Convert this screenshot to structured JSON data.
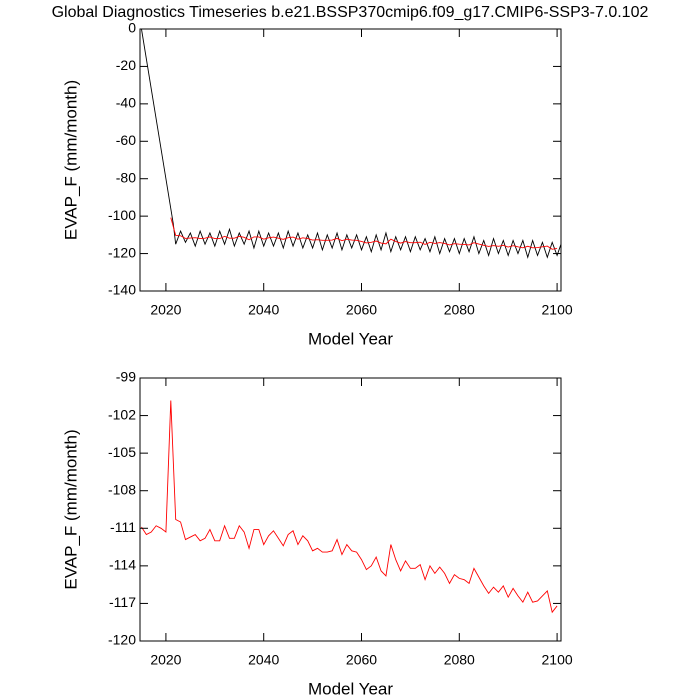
{
  "chart_data": [
    {
      "type": "line",
      "title": "Global Diagnostics Timeseries b.e21.BSSP370cmip6.f09_g17.CMIP6-SSP3-7.0.102",
      "xlabel": "Model Year",
      "ylabel": "EVAP_F (mm/month)",
      "xlim": [
        2014.7,
        2100.8
      ],
      "ylim": [
        -140,
        0
      ],
      "xticks": [
        2020,
        2040,
        2060,
        2080,
        2100
      ],
      "yticks": [
        0,
        -20,
        -40,
        -60,
        -80,
        -100,
        -120,
        -140
      ],
      "series": [
        {
          "color": "#000000",
          "x": [
            2015,
            2021.5,
            2022,
            2023,
            2024,
            2025,
            2026,
            2027,
            2028,
            2029,
            2030,
            2031,
            2032,
            2033,
            2034,
            2035,
            2036,
            2037,
            2038,
            2039,
            2040,
            2041,
            2042,
            2043,
            2044,
            2045,
            2046,
            2047,
            2048,
            2049,
            2050,
            2051,
            2052,
            2053,
            2054,
            2055,
            2056,
            2057,
            2058,
            2059,
            2060,
            2061,
            2062,
            2063,
            2064,
            2065,
            2066,
            2067,
            2068,
            2069,
            2070,
            2071,
            2072,
            2073,
            2074,
            2075,
            2076,
            2077,
            2078,
            2079,
            2080,
            2081,
            2082,
            2083,
            2084,
            2085,
            2086,
            2087,
            2088,
            2089,
            2090,
            2091,
            2092,
            2093,
            2094,
            2095,
            2096,
            2097,
            2098,
            2099,
            2100,
            2100.8
          ],
          "values": [
            0,
            -104,
            -115,
            -108,
            -114,
            -109,
            -116,
            -108,
            -115,
            -109,
            -116,
            -108,
            -115,
            -107,
            -116,
            -109,
            -115,
            -108,
            -117,
            -108,
            -116,
            -109,
            -116,
            -109,
            -117,
            -108,
            -116,
            -109,
            -117,
            -110,
            -117,
            -109,
            -118,
            -110,
            -117,
            -109,
            -118,
            -110,
            -117,
            -110,
            -118,
            -111,
            -119,
            -110,
            -118,
            -109,
            -119,
            -111,
            -118,
            -111,
            -119,
            -111,
            -118,
            -112,
            -119,
            -111,
            -120,
            -112,
            -119,
            -112,
            -120,
            -112,
            -119,
            -111,
            -120,
            -113,
            -121,
            -112,
            -120,
            -113,
            -121,
            -113,
            -120,
            -113,
            -122,
            -113,
            -121,
            -114,
            -122,
            -114,
            -121,
            -115
          ]
        },
        {
          "color": "#ff0000",
          "x": [
            2021,
            2022,
            2023,
            2024,
            2025,
            2026,
            2027,
            2028,
            2029,
            2030,
            2031,
            2032,
            2033,
            2034,
            2035,
            2036,
            2037,
            2038,
            2039,
            2040,
            2041,
            2042,
            2043,
            2044,
            2045,
            2046,
            2047,
            2048,
            2049,
            2050,
            2051,
            2052,
            2053,
            2054,
            2055,
            2056,
            2057,
            2058,
            2059,
            2060,
            2061,
            2062,
            2063,
            2064,
            2065,
            2066,
            2067,
            2068,
            2069,
            2070,
            2071,
            2072,
            2073,
            2074,
            2075,
            2076,
            2077,
            2078,
            2079,
            2080,
            2081,
            2082,
            2083,
            2084,
            2085,
            2086,
            2087,
            2088,
            2089,
            2090,
            2091,
            2092,
            2093,
            2094,
            2095,
            2096,
            2097,
            2098,
            2099,
            2100
          ],
          "values": [
            -100.8,
            -110.3,
            -110.5,
            -111.9,
            -111.7,
            -111.5,
            -112.0,
            -111.8,
            -111.1,
            -112.0,
            -112.0,
            -110.8,
            -111.8,
            -111.8,
            -110.8,
            -111.3,
            -112.6,
            -111.1,
            -111.1,
            -112.3,
            -111.6,
            -111.2,
            -111.8,
            -112.4,
            -111.5,
            -111.2,
            -112.3,
            -111.6,
            -112.0,
            -112.8,
            -112.6,
            -112.9,
            -112.9,
            -112.8,
            -111.9,
            -113.1,
            -112.3,
            -112.8,
            -112.9,
            -113.5,
            -114.3,
            -114.0,
            -113.3,
            -114.4,
            -114.8,
            -112.3,
            -113.5,
            -114.4,
            -113.6,
            -114.2,
            -114.2,
            -113.9,
            -115.1,
            -114.0,
            -114.6,
            -114.1,
            -114.6,
            -115.4,
            -114.7,
            -115.0,
            -115.1,
            -115.4,
            -114.2,
            -114.9,
            -115.6,
            -116.2,
            -115.7,
            -116.1,
            -115.6,
            -116.5,
            -115.8,
            -116.4,
            -116.9,
            -116.1,
            -116.9,
            -116.8,
            -116.4,
            -116.0,
            -117.7,
            -117.2
          ]
        }
      ]
    },
    {
      "type": "line",
      "xlabel": "Model Year",
      "ylabel": "EVAP_F (mm/month)",
      "xlim": [
        2014.7,
        2100.8
      ],
      "ylim": [
        -120,
        -99
      ],
      "xticks": [
        2020,
        2040,
        2060,
        2080,
        2100
      ],
      "yticks": [
        -99,
        -102,
        -105,
        -108,
        -111,
        -114,
        -117,
        -120
      ],
      "series": [
        {
          "color": "#ff0000",
          "x": [
            2015,
            2016,
            2017,
            2018,
            2019,
            2020,
            2021,
            2022,
            2023,
            2024,
            2025,
            2026,
            2027,
            2028,
            2029,
            2030,
            2031,
            2032,
            2033,
            2034,
            2035,
            2036,
            2037,
            2038,
            2039,
            2040,
            2041,
            2042,
            2043,
            2044,
            2045,
            2046,
            2047,
            2048,
            2049,
            2050,
            2051,
            2052,
            2053,
            2054,
            2055,
            2056,
            2057,
            2058,
            2059,
            2060,
            2061,
            2062,
            2063,
            2064,
            2065,
            2066,
            2067,
            2068,
            2069,
            2070,
            2071,
            2072,
            2073,
            2074,
            2075,
            2076,
            2077,
            2078,
            2079,
            2080,
            2081,
            2082,
            2083,
            2084,
            2085,
            2086,
            2087,
            2088,
            2089,
            2090,
            2091,
            2092,
            2093,
            2094,
            2095,
            2096,
            2097,
            2098,
            2099,
            2100
          ],
          "values": [
            -110.9,
            -111.5,
            -111.3,
            -110.8,
            -111.0,
            -111.3,
            -100.8,
            -110.3,
            -110.5,
            -111.9,
            -111.7,
            -111.5,
            -112.0,
            -111.8,
            -111.1,
            -112.0,
            -112.0,
            -110.8,
            -111.8,
            -111.8,
            -110.8,
            -111.3,
            -112.6,
            -111.1,
            -111.1,
            -112.3,
            -111.6,
            -111.2,
            -111.8,
            -112.4,
            -111.5,
            -111.2,
            -112.3,
            -111.6,
            -112.0,
            -112.8,
            -112.6,
            -112.9,
            -112.9,
            -112.8,
            -111.9,
            -113.1,
            -112.3,
            -112.8,
            -112.9,
            -113.5,
            -114.3,
            -114.0,
            -113.3,
            -114.4,
            -114.8,
            -112.3,
            -113.5,
            -114.4,
            -113.6,
            -114.2,
            -114.2,
            -113.9,
            -115.1,
            -114.0,
            -114.6,
            -114.1,
            -114.6,
            -115.4,
            -114.7,
            -115.0,
            -115.1,
            -115.4,
            -114.2,
            -114.9,
            -115.6,
            -116.2,
            -115.7,
            -116.1,
            -115.6,
            -116.5,
            -115.8,
            -116.4,
            -116.9,
            -116.1,
            -116.9,
            -116.8,
            -116.4,
            -116.0,
            -117.7,
            -117.2
          ]
        }
      ]
    }
  ]
}
